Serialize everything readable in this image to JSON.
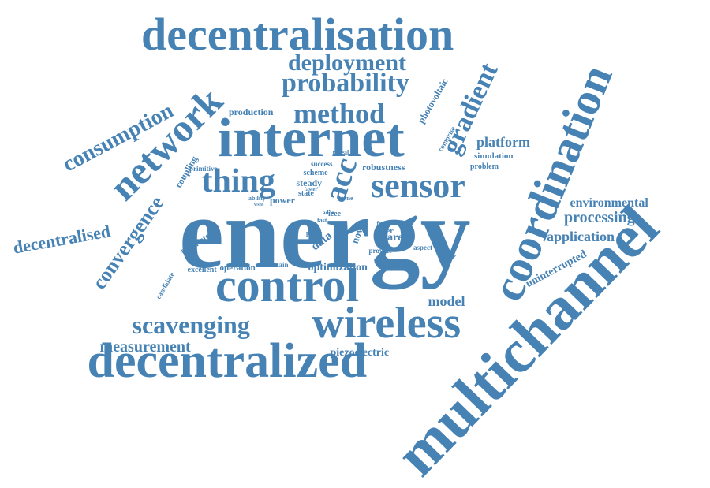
{
  "color": "#4682b4",
  "words": [
    "energy",
    "multichannel",
    "coordination",
    "internet",
    "decentralized",
    "control",
    "wireless",
    "decentralisation",
    "network",
    "sensor",
    "thing",
    "method",
    "probability",
    "deployment",
    "gradient",
    "scavenging",
    "consumption",
    "convergence",
    "decentralised",
    "measurement",
    "processing",
    "platform",
    "application",
    "environmental",
    "model",
    "uninterrupted",
    "acc",
    "optimization",
    "piezoelectric",
    "photovoltaic",
    "production",
    "robustness",
    "simulation",
    "problem",
    "comprise",
    "coupling",
    "primitive",
    "operation",
    "excellent",
    "candidate",
    "facilitate",
    "sustain",
    "data",
    "novel",
    "aware",
    "layer",
    "future",
    "provide",
    "result",
    "aspect",
    "channel",
    "paper",
    "ieee",
    "power",
    "state",
    "steady",
    "scheme",
    "success",
    "reveal",
    "time",
    "faster",
    "ability",
    "wsns",
    "adde",
    "fast"
  ]
}
